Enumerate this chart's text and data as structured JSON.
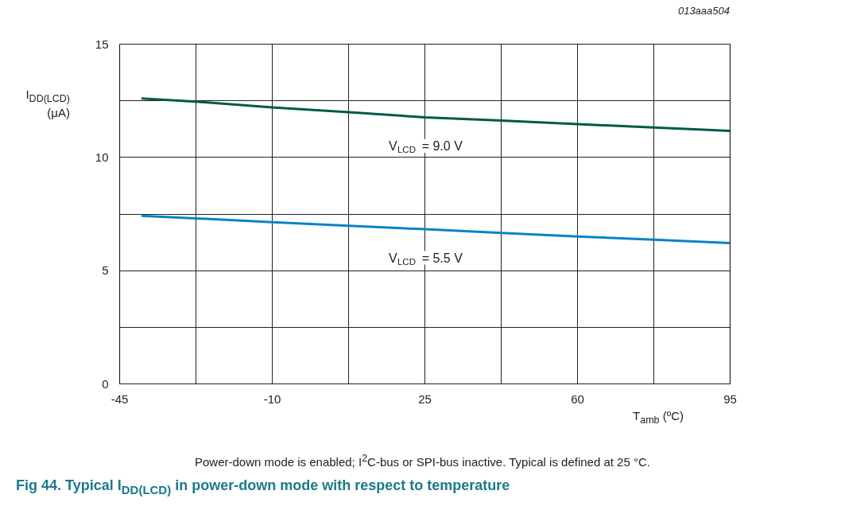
{
  "chart_data": {
    "type": "line",
    "title": "Fig 44. Typical I$_{DD(LCD)}$ in power-down mode with respect to temperature",
    "xlabel": "T$_{amb}$ (ºC)",
    "ylabel": "I$_{DD(LCD)}$\n(μA)",
    "annotations": [
      "013aaa504",
      "Power-down mode is enabled; I$^{2}$C-bus or SPI-bus inactive. Typical is defined at 25 °C."
    ],
    "x": [
      -40,
      -27.5,
      -10,
      7.5,
      25,
      42.5,
      60,
      77.5,
      95
    ],
    "series": [
      {
        "name": "V$_{LCD}$ = 9.0 V",
        "color": "#00594a",
        "values": [
          12.6,
          12.46,
          12.21,
          12.0,
          11.77,
          11.63,
          11.47,
          11.32,
          11.17
        ]
      },
      {
        "name": "V$_{LCD}$ = 5.5 V",
        "color": "#0a82c8",
        "values": [
          7.42,
          7.31,
          7.14,
          6.98,
          6.83,
          6.67,
          6.51,
          6.37,
          6.22
        ]
      }
    ],
    "xlim": [
      -45,
      95
    ],
    "ylim": [
      0,
      15
    ],
    "xticks": [
      -45,
      {
        "value": -27.5,
        "label": null
      },
      -10,
      {
        "value": 7.5,
        "label": null
      },
      25,
      {
        "value": 42.5,
        "label": null
      },
      60,
      {
        "value": 77.5,
        "label": null
      },
      95
    ],
    "yticks": [
      0,
      {
        "value": 2.5,
        "label": null
      },
      5,
      {
        "value": 7.5,
        "label": null
      },
      10,
      {
        "value": 12.5,
        "label": null
      },
      15
    ],
    "grid": true
  }
}
